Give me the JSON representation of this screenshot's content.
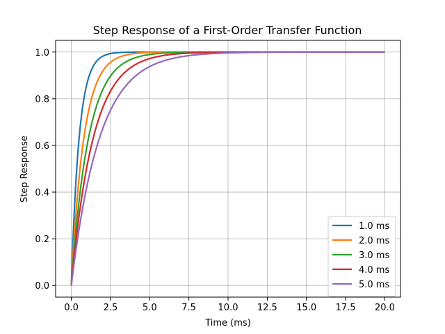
{
  "chart_data": {
    "type": "line",
    "title": "Step Response of a First-Order Transfer Function",
    "xlabel": "Time (ms)",
    "ylabel": "Step Response",
    "xlim": [
      -1.0,
      21.0
    ],
    "ylim": [
      -0.05,
      1.05
    ],
    "x_ticks": [
      "0.0",
      "2.5",
      "5.0",
      "7.5",
      "10.0",
      "12.5",
      "15.0",
      "17.5",
      "20.0"
    ],
    "y_ticks": [
      "0.0",
      "0.2",
      "0.4",
      "0.6",
      "0.8",
      "1.0"
    ],
    "grid": true,
    "legend_position": "lower right",
    "x_range": [
      0,
      20
    ],
    "series": [
      {
        "name": "1.0 ms",
        "time_constant": 0.5,
        "color": "#1f77b4"
      },
      {
        "name": "2.0 ms",
        "time_constant": 0.8,
        "color": "#ff7f0e"
      },
      {
        "name": "3.0 ms",
        "time_constant": 1.1,
        "color": "#2ca02c"
      },
      {
        "name": "4.0 ms",
        "time_constant": 1.4,
        "color": "#d62728"
      },
      {
        "name": "5.0 ms",
        "time_constant": 1.8,
        "color": "#9467bd"
      }
    ]
  }
}
